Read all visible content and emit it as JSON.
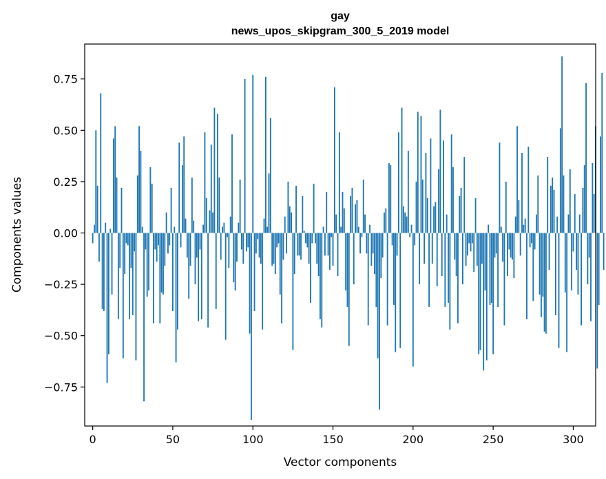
{
  "chart_data": {
    "type": "bar",
    "title": "gay",
    "subtitle": "news_upos_skipgram_300_5_2019 model",
    "xlabel": "Vector components",
    "ylabel": "Components values",
    "xlim": [
      -5,
      314
    ],
    "ylim": [
      -0.94,
      0.92
    ],
    "xticks": [
      0,
      50,
      100,
      150,
      200,
      250,
      300
    ],
    "yticks": [
      -0.75,
      -0.5,
      -0.25,
      0.0,
      0.25,
      0.5,
      0.75
    ],
    "xtick_labels": [
      "0",
      "50",
      "100",
      "150",
      "200",
      "250",
      "300"
    ],
    "ytick_labels": [
      "−0.75",
      "−0.50",
      "−0.25",
      "0.00",
      "0.25",
      "0.50",
      "0.75"
    ],
    "grid": false,
    "bar_color": "#1f77b4",
    "values": [
      -0.05,
      0.04,
      0.5,
      0.23,
      -0.14,
      0.68,
      -0.37,
      -0.38,
      0.05,
      -0.73,
      -0.59,
      0.02,
      -0.3,
      0.46,
      0.52,
      0.27,
      -0.42,
      -0.17,
      0.22,
      -0.61,
      -0.2,
      -0.05,
      -0.06,
      -0.42,
      -0.17,
      -0.4,
      -0.09,
      -0.62,
      0.28,
      0.52,
      0.4,
      0.03,
      -0.82,
      -0.08,
      -0.31,
      -0.28,
      0.32,
      0.24,
      -0.44,
      -0.08,
      -0.14,
      -0.06,
      -0.44,
      -0.29,
      -0.3,
      -0.16,
      0.1,
      -0.1,
      -0.06,
      0.22,
      -0.38,
      0.03,
      -0.63,
      -0.47,
      0.44,
      -0.07,
      0.33,
      0.47,
      0.07,
      -0.12,
      -0.32,
      -0.16,
      0.27,
      0.06,
      -0.25,
      -0.12,
      -0.43,
      -0.08,
      -0.42,
      0.04,
      0.49,
      0.17,
      -0.46,
      0.11,
      0.43,
      0.1,
      0.61,
      -0.37,
      0.58,
      0.27,
      -0.13,
      0.03,
      0.05,
      -0.52,
      -0.02,
      -0.17,
      0.08,
      0.48,
      -0.24,
      -0.28,
      -0.14,
      0.05,
      0.26,
      -0.08,
      -0.15,
      0.75,
      -0.09,
      -0.07,
      -0.49,
      -0.91,
      0.77,
      -0.38,
      -0.1,
      -0.03,
      -0.12,
      -0.15,
      -0.47,
      0.07,
      0.76,
      0.03,
      0.29,
      0.56,
      -0.16,
      -0.15,
      -0.2,
      -0.07,
      -0.05,
      -0.3,
      -0.44,
      -0.13,
      0.08,
      -0.1,
      0.25,
      0.13,
      0.1,
      -0.57,
      -0.2,
      0.23,
      -0.11,
      -0.11,
      -0.13,
      0.18,
      0.01,
      -0.05,
      -0.07,
      -0.15,
      -0.34,
      -0.05,
      0.24,
      -0.05,
      -0.15,
      -0.21,
      -0.42,
      -0.46,
      0.03,
      -0.11,
      0.2,
      -0.11,
      -0.18,
      -0.02,
      -0.16,
      0.71,
      0.09,
      -0.21,
      0.49,
      0.03,
      0.2,
      0.12,
      -0.28,
      -0.36,
      -0.55,
      0.18,
      0.22,
      -0.25,
      0.14,
      0.16,
      0.03,
      -0.1,
      -0.02,
      0.26,
      0.09,
      -0.1,
      -0.45,
      0.04,
      -0.16,
      -0.1,
      -0.2,
      -0.36,
      -0.61,
      -0.86,
      -0.22,
      -0.12,
      0.1,
      0.12,
      -0.45,
      0.34,
      0.33,
      -0.06,
      -0.35,
      -0.58,
      -0.11,
      0.49,
      -0.56,
      0.61,
      0.13,
      0.1,
      0.08,
      0.4,
      -0.02,
      0.04,
      -0.65,
      -0.06,
      0.25,
      0.59,
      -0.25,
      0.57,
      0.26,
      -0.15,
      0.39,
      0.17,
      -0.36,
      0.46,
      -0.15,
      0.13,
      0.15,
      -0.26,
      0.31,
      0.6,
      -0.21,
      0.45,
      -0.36,
      0.09,
      -0.34,
      -0.47,
      0.48,
      0.32,
      -0.13,
      -0.21,
      -0.44,
      0.18,
      0.22,
      -0.25,
      0.37,
      -0.16,
      -0.11,
      -0.05,
      -0.09,
      -0.05,
      -0.19,
      0.17,
      -0.16,
      -0.59,
      -0.57,
      -0.15,
      -0.67,
      -0.28,
      -0.62,
      0.04,
      -0.35,
      -0.34,
      -0.59,
      -0.12,
      -0.1,
      -0.36,
      0.44,
      0.03,
      -0.14,
      -0.45,
      0.25,
      -0.21,
      -0.08,
      -0.12,
      -0.13,
      -0.22,
      0.08,
      0.52,
      0.16,
      -0.11,
      0.39,
      0.04,
      0.07,
      -0.42,
      0.42,
      -0.07,
      -0.05,
      -0.33,
      -0.08,
      0.09,
      0.28,
      -0.3,
      -0.41,
      -0.31,
      -0.48,
      -0.49,
      0.37,
      -0.18,
      0.23,
      0.27,
      0.21,
      -0.4,
      0.08,
      -0.56,
      0.51,
      0.86,
      0.28,
      -0.29,
      -0.58,
      0.09,
      0.31,
      -0.28,
      -0.09,
      0.19,
      -0.18,
      -0.3,
      0.09,
      -0.45,
      0.22,
      0.33,
      0.73,
      -0.25,
      -0.12,
      -0.43,
      0.34,
      0.19,
      0.52,
      -0.66,
      -0.35,
      0.47,
      0.78,
      -0.18
    ]
  }
}
